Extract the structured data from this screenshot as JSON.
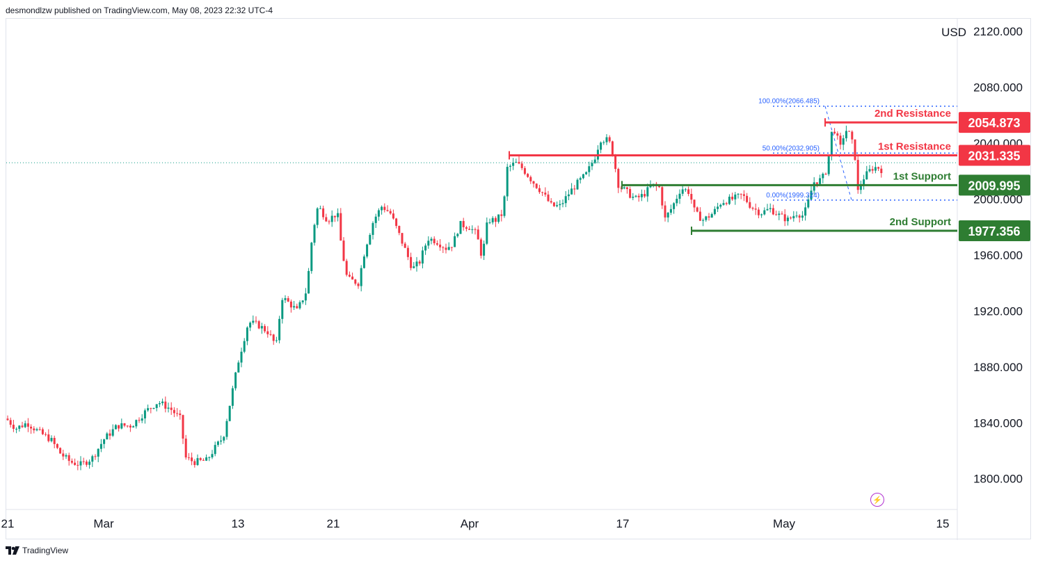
{
  "header": {
    "published_text": "desmondlzw published on TradingView.com, May 08, 2023 22:32 UTC-4"
  },
  "footer": {
    "brand": "TradingView",
    "logo_icon": "tradingview-logo-icon"
  },
  "colors": {
    "up": "#089981",
    "down": "#f23645",
    "resistance": "#f23645",
    "support": "#2e7d32",
    "fib": "#2962ff",
    "grid": "#f0f3fa",
    "axis_text": "#131722"
  },
  "chart_data": {
    "type": "candlestick",
    "currency": "USD",
    "ylim": [
      1778,
      2129
    ],
    "y_ticks": [
      1800,
      1840,
      1880,
      1920,
      1960,
      2000,
      2040,
      2080,
      2120
    ],
    "y_tick_labels": [
      "1800.000",
      "1840.000",
      "1880.000",
      "1920.000",
      "1960.000",
      "2000.000",
      "2040.000",
      "2080.000",
      "2120.000"
    ],
    "x_labels": [
      "21",
      "Mar",
      "13",
      "21",
      "Apr",
      "17",
      "May",
      "15"
    ],
    "x_dates": [
      "2023-02-21",
      "2023-03-01",
      "2023-03-13",
      "2023-03-21",
      "2023-04-01",
      "2023-04-17",
      "2023-05-01",
      "2023-05-15"
    ],
    "last_price": 2026,
    "price_path": [
      [
        0,
        1843
      ],
      [
        14,
        1836
      ],
      [
        30,
        1840
      ],
      [
        48,
        1833
      ],
      [
        64,
        1828
      ],
      [
        78,
        1818
      ],
      [
        92,
        1812
      ],
      [
        108,
        1810
      ],
      [
        124,
        1815
      ],
      [
        140,
        1828
      ],
      [
        160,
        1838
      ],
      [
        180,
        1838
      ],
      [
        200,
        1848
      ],
      [
        218,
        1855
      ],
      [
        236,
        1850
      ],
      [
        250,
        1843
      ],
      [
        258,
        1815
      ],
      [
        270,
        1812
      ],
      [
        288,
        1813
      ],
      [
        300,
        1822
      ],
      [
        312,
        1830
      ],
      [
        322,
        1855
      ],
      [
        334,
        1885
      ],
      [
        348,
        1912
      ],
      [
        362,
        1910
      ],
      [
        376,
        1905
      ],
      [
        388,
        1895
      ],
      [
        396,
        1930
      ],
      [
        408,
        1925
      ],
      [
        418,
        1920
      ],
      [
        432,
        1935
      ],
      [
        440,
        1975
      ],
      [
        448,
        1995
      ],
      [
        462,
        1985
      ],
      [
        476,
        1990
      ],
      [
        482,
        1965
      ],
      [
        490,
        1943
      ],
      [
        506,
        1940
      ],
      [
        516,
        1965
      ],
      [
        528,
        1985
      ],
      [
        540,
        1995
      ],
      [
        552,
        1990
      ],
      [
        562,
        1978
      ],
      [
        574,
        1963
      ],
      [
        584,
        1950
      ],
      [
        594,
        1955
      ],
      [
        606,
        1972
      ],
      [
        618,
        1970
      ],
      [
        632,
        1965
      ],
      [
        642,
        1968
      ],
      [
        652,
        1982
      ],
      [
        666,
        1980
      ],
      [
        676,
        1975
      ],
      [
        684,
        1958
      ],
      [
        692,
        1985
      ],
      [
        704,
        1985
      ],
      [
        714,
        1990
      ],
      [
        720,
        2022
      ],
      [
        732,
        2026
      ],
      [
        742,
        2022
      ],
      [
        756,
        2013
      ],
      [
        770,
        2005
      ],
      [
        784,
        1995
      ],
      [
        796,
        1995
      ],
      [
        810,
        2005
      ],
      [
        822,
        2012
      ],
      [
        834,
        2018
      ],
      [
        846,
        2030
      ],
      [
        854,
        2043
      ],
      [
        866,
        2042
      ],
      [
        872,
        2032
      ],
      [
        880,
        2010
      ],
      [
        892,
        2005
      ],
      [
        904,
        2000
      ],
      [
        916,
        2003
      ],
      [
        928,
        2010
      ],
      [
        940,
        2008
      ],
      [
        946,
        1985
      ],
      [
        958,
        1995
      ],
      [
        970,
        2008
      ],
      [
        982,
        2005
      ],
      [
        990,
        1990
      ],
      [
        1002,
        1985
      ],
      [
        1016,
        1990
      ],
      [
        1028,
        1998
      ],
      [
        1044,
        2000
      ],
      [
        1058,
        2003
      ],
      [
        1070,
        1995
      ],
      [
        1084,
        1990
      ],
      [
        1098,
        1993
      ],
      [
        1112,
        1988
      ],
      [
        1124,
        1985
      ],
      [
        1136,
        1990
      ],
      [
        1146,
        1988
      ],
      [
        1154,
        2000
      ],
      [
        1160,
        2012
      ],
      [
        1172,
        2014
      ],
      [
        1180,
        2022
      ],
      [
        1186,
        2047
      ],
      [
        1192,
        2050
      ],
      [
        1198,
        2035
      ],
      [
        1206,
        2050
      ],
      [
        1214,
        2045
      ],
      [
        1220,
        2030
      ],
      [
        1224,
        2005
      ],
      [
        1232,
        2015
      ],
      [
        1244,
        2022
      ],
      [
        1252,
        2023
      ],
      [
        1258,
        2021
      ]
    ],
    "levels": [
      {
        "name": "2nd Resistance",
        "value": 2054.873,
        "label": "2054.873",
        "kind": "resistance"
      },
      {
        "name": "1st Resistance",
        "value": 2031.335,
        "label": "2031.335",
        "kind": "resistance"
      },
      {
        "name": "1st Support",
        "value": 2009.995,
        "label": "2009.995",
        "kind": "support"
      },
      {
        "name": "2nd Support",
        "value": 1977.356,
        "label": "1977.356",
        "kind": "support"
      }
    ],
    "fibonacci": [
      {
        "label": "100.00%(2066.485)",
        "value": 2066.485
      },
      {
        "label": "50.00%(2032.905)",
        "value": 2032.905
      },
      {
        "label": "0.00%(1999.324)",
        "value": 1999.324
      }
    ]
  }
}
